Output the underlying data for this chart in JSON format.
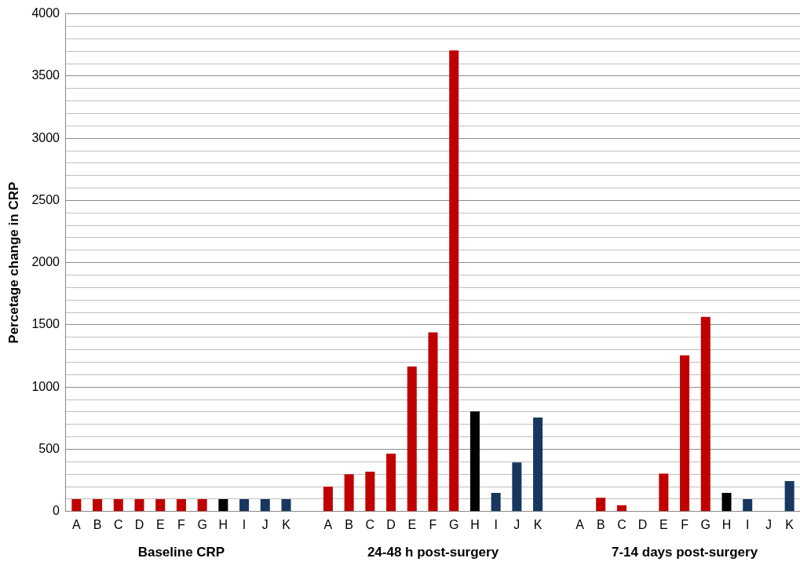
{
  "chart_data": {
    "type": "bar",
    "ylabel": "Percetage change in CRP",
    "categories": [
      "A",
      "B",
      "C",
      "D",
      "E",
      "F",
      "G",
      "H",
      "I",
      "J",
      "K",
      null,
      "A",
      "B",
      "C",
      "D",
      "E",
      "F",
      "G",
      "H",
      "I",
      "J",
      "K",
      null,
      "A",
      "B",
      "C",
      "D",
      "E",
      "F",
      "G",
      "H",
      "I",
      "J",
      "K"
    ],
    "values": [
      100,
      100,
      100,
      100,
      100,
      100,
      100,
      100,
      100,
      100,
      100,
      null,
      200,
      300,
      320,
      465,
      1165,
      1440,
      3705,
      805,
      150,
      395,
      755,
      null,
      0,
      110,
      50,
      0,
      305,
      1255,
      1565,
      150,
      100,
      0,
      245
    ],
    "colors": [
      "#c00000",
      "#c00000",
      "#c00000",
      "#c00000",
      "#c00000",
      "#c00000",
      "#c00000",
      "#000000",
      "#17375e",
      "#17375e",
      "#17375e",
      "#ffffff",
      "#c00000",
      "#c00000",
      "#c00000",
      "#c00000",
      "#c00000",
      "#c00000",
      "#c00000",
      "#000000",
      "#17375e",
      "#17375e",
      "#17375e",
      "#ffffff",
      "#c00000",
      "#c00000",
      "#c00000",
      "#c00000",
      "#c00000",
      "#c00000",
      "#c00000",
      "#000000",
      "#17375e",
      "#17375e",
      "#17375e"
    ],
    "annotations": [
      "Baseline CRP",
      "24-48 h post-surgery",
      "7-14 days post-surgery"
    ],
    "ylim": [
      0,
      4000
    ],
    "yticks": [
      0,
      {
        "value": 100,
        "label": null
      },
      {
        "value": 200,
        "label": null
      },
      {
        "value": 300,
        "label": null
      },
      {
        "value": 400,
        "label": null
      },
      500,
      {
        "value": 600,
        "label": null
      },
      {
        "value": 700,
        "label": null
      },
      {
        "value": 800,
        "label": null
      },
      {
        "value": 900,
        "label": null
      },
      1000,
      {
        "value": 1100,
        "label": null
      },
      {
        "value": 1200,
        "label": null
      },
      {
        "value": 1300,
        "label": null
      },
      {
        "value": 1400,
        "label": null
      },
      1500,
      {
        "value": 1600,
        "label": null
      },
      {
        "value": 1700,
        "label": null
      },
      {
        "value": 1800,
        "label": null
      },
      {
        "value": 1900,
        "label": null
      },
      2000,
      {
        "value": 2100,
        "label": null
      },
      {
        "value": 2200,
        "label": null
      },
      {
        "value": 2300,
        "label": null
      },
      {
        "value": 2400,
        "label": null
      },
      2500,
      {
        "value": 2600,
        "label": null
      },
      {
        "value": 2700,
        "label": null
      },
      {
        "value": 2800,
        "label": null
      },
      {
        "value": 2900,
        "label": null
      },
      3000,
      {
        "value": 3100,
        "label": null
      },
      {
        "value": 3200,
        "label": null
      },
      {
        "value": 3300,
        "label": null
      },
      {
        "value": 3400,
        "label": null
      },
      3500,
      {
        "value": 3600,
        "label": null
      },
      {
        "value": 3700,
        "label": null
      },
      {
        "value": 3800,
        "label": null
      },
      {
        "value": 3900,
        "label": null
      },
      4000
    ],
    "grid": "y",
    "legend": false
  }
}
